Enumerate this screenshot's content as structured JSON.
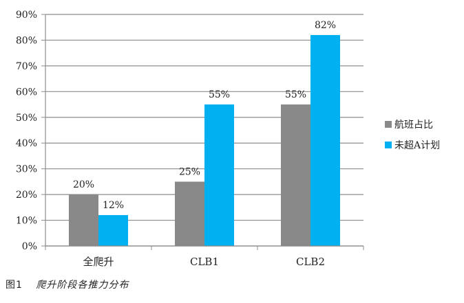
{
  "chart_data": {
    "type": "bar",
    "categories": [
      "全爬升",
      "CLB1",
      "CLB2"
    ],
    "series": [
      {
        "name": "航班占比",
        "values": [
          20,
          25,
          55
        ],
        "labels": [
          "20%",
          "25%",
          "55%"
        ],
        "color": "#898989"
      },
      {
        "name": "未超A计划",
        "values": [
          12,
          55,
          82
        ],
        "labels": [
          "12%",
          "55%",
          "82%"
        ],
        "color": "#00b0f0"
      }
    ],
    "ylim": [
      0,
      90
    ],
    "yticks": [
      "0%",
      "10%",
      "20%",
      "30%",
      "40%",
      "50%",
      "60%",
      "70%",
      "80%",
      "90%"
    ],
    "grid": true,
    "legend_position": "right"
  },
  "caption": {
    "number": "图1",
    "text": "爬升阶段各推力分布"
  }
}
